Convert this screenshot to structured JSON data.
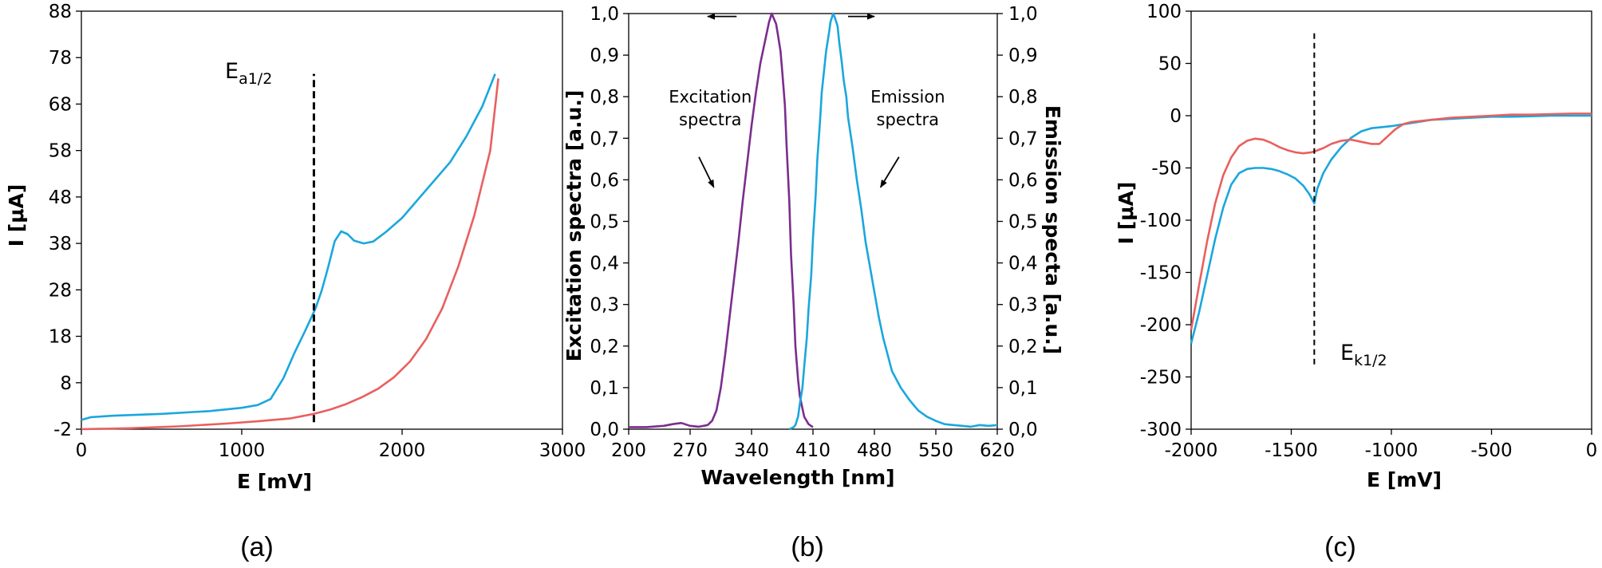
{
  "colors": {
    "blue": "#1aa7dd",
    "red": "#e8605f",
    "purple": "#7b2d8e"
  },
  "chart_data": [
    {
      "type": "line",
      "panel_label": "(a)",
      "xlabel": "E [mV]",
      "ylabel": "I [μA]",
      "xlim": [
        0,
        3000
      ],
      "ylim": [
        -2,
        88
      ],
      "xticks": [
        "0",
        "1000",
        "2000",
        "3000"
      ],
      "yticks": [
        "-2",
        "8",
        "18",
        "28",
        "38",
        "48",
        "58",
        "68",
        "78",
        "88"
      ],
      "grid": false,
      "annotation": {
        "base": "E",
        "sub": "a1/2",
        "x": 1450,
        "y_range": [
          -0.5,
          74.5
        ]
      },
      "series": [
        {
          "color": "blue",
          "x": [
            0,
            60,
            200,
            500,
            800,
            1000,
            1100,
            1180,
            1260,
            1330,
            1400,
            1460,
            1500,
            1540,
            1580,
            1620,
            1660,
            1700,
            1760,
            1820,
            1900,
            2000,
            2100,
            2200,
            2300,
            2400,
            2500,
            2580
          ],
          "y": [
            0,
            0.6,
            0.9,
            1.3,
            1.9,
            2.6,
            3.2,
            4.5,
            9.0,
            14.5,
            19.5,
            24.0,
            28.0,
            33.0,
            38.5,
            40.6,
            40.0,
            38.6,
            38.0,
            38.4,
            40.5,
            43.5,
            47.5,
            51.5,
            55.5,
            61.0,
            67.5,
            74.5
          ]
        },
        {
          "color": "red",
          "x": [
            0,
            300,
            600,
            900,
            1100,
            1300,
            1450,
            1550,
            1650,
            1750,
            1850,
            1950,
            2050,
            2150,
            2250,
            2350,
            2450,
            2550,
            2600
          ],
          "y": [
            -2,
            -1.8,
            -1.4,
            -0.8,
            -0.3,
            0.3,
            1.3,
            2.2,
            3.4,
            4.9,
            6.7,
            9.2,
            12.6,
            17.4,
            24.0,
            33.0,
            44.0,
            58.0,
            73.5
          ]
        }
      ]
    },
    {
      "type": "line",
      "panel_label": "(b)",
      "xlabel": "Wavelength [nm]",
      "ylabel_left": "Excitation spectra [a.u.]",
      "ylabel_right": "Emission specta [a.u.]",
      "xlim": [
        200,
        620
      ],
      "ylim": [
        0,
        1
      ],
      "xticks": [
        "200",
        "270",
        "340",
        "410",
        "480",
        "550",
        "620"
      ],
      "yticks": [
        "0,0",
        "0,1",
        "0,2",
        "0,3",
        "0,4",
        "0,5",
        "0,6",
        "0,7",
        "0,8",
        "0,9",
        "1,0"
      ],
      "grid": false,
      "annotations": [
        {
          "text": [
            "Excitation",
            "spectra"
          ],
          "x": 293,
          "y": [
            0.786,
            0.731
          ]
        },
        {
          "text": [
            "Emission",
            "spectra"
          ],
          "x": 518,
          "y": [
            0.786,
            0.731
          ]
        }
      ],
      "arrows": [
        {
          "from": [
            323,
            0.993
          ],
          "to": [
            290,
            0.993
          ]
        },
        {
          "from": [
            450,
            0.993
          ],
          "to": [
            480,
            0.993
          ]
        },
        {
          "from": [
            280,
            0.655
          ],
          "to": [
            297,
            0.582
          ]
        },
        {
          "from": [
            508,
            0.655
          ],
          "to": [
            487,
            0.582
          ]
        }
      ],
      "series": [
        {
          "name": "Excitation spectra",
          "color": "purple",
          "x": [
            200,
            220,
            240,
            250,
            260,
            270,
            280,
            290,
            295,
            300,
            305,
            310,
            315,
            320,
            325,
            330,
            335,
            340,
            345,
            350,
            355,
            358,
            360,
            363,
            365,
            368,
            370,
            373,
            375,
            378,
            380,
            383,
            385,
            388,
            390,
            393,
            395,
            400,
            405,
            410
          ],
          "y": [
            0.005,
            0.005,
            0.008,
            0.012,
            0.015,
            0.008,
            0.006,
            0.01,
            0.02,
            0.045,
            0.1,
            0.18,
            0.27,
            0.36,
            0.45,
            0.55,
            0.64,
            0.73,
            0.81,
            0.88,
            0.93,
            0.96,
            0.98,
            1.0,
            0.99,
            0.975,
            0.95,
            0.91,
            0.86,
            0.78,
            0.68,
            0.55,
            0.42,
            0.3,
            0.2,
            0.12,
            0.08,
            0.03,
            0.012,
            0.005
          ]
        },
        {
          "name": "Emission spectra",
          "color": "blue",
          "x": [
            383,
            388,
            390,
            393,
            395,
            398,
            400,
            403,
            405,
            408,
            410,
            413,
            415,
            418,
            420,
            423,
            425,
            428,
            430,
            433,
            435,
            438,
            440,
            443,
            445,
            448,
            450,
            455,
            460,
            465,
            470,
            475,
            480,
            485,
            490,
            495,
            500,
            505,
            510,
            520,
            530,
            540,
            550,
            560,
            570,
            580,
            590,
            600,
            610,
            620
          ],
          "y": [
            0.0,
            0.005,
            0.01,
            0.03,
            0.06,
            0.1,
            0.15,
            0.22,
            0.29,
            0.37,
            0.46,
            0.56,
            0.65,
            0.74,
            0.81,
            0.87,
            0.91,
            0.95,
            0.98,
            1.0,
            0.99,
            0.97,
            0.93,
            0.88,
            0.84,
            0.8,
            0.75,
            0.68,
            0.6,
            0.53,
            0.45,
            0.39,
            0.33,
            0.27,
            0.22,
            0.18,
            0.14,
            0.12,
            0.1,
            0.07,
            0.045,
            0.03,
            0.02,
            0.012,
            0.01,
            0.008,
            0.006,
            0.01,
            0.008,
            0.01
          ]
        }
      ]
    },
    {
      "type": "line",
      "panel_label": "(c)",
      "xlabel": "E [mV]",
      "ylabel": "I [μA]",
      "xlim": [
        -2000,
        0
      ],
      "ylim": [
        -300,
        100
      ],
      "xticks": [
        "-2000",
        "-1500",
        "-1000",
        "-500",
        "0"
      ],
      "yticks": [
        "-300",
        "-250",
        "-200",
        "-150",
        "-100",
        "-50",
        "0",
        "50",
        "100"
      ],
      "grid": false,
      "annotation": {
        "base": "E",
        "sub": "k1/2",
        "x": -1385,
        "y_range": [
          -238,
          80
        ]
      },
      "series": [
        {
          "color": "blue",
          "x": [
            -2000,
            -1960,
            -1920,
            -1880,
            -1840,
            -1800,
            -1760,
            -1720,
            -1680,
            -1640,
            -1600,
            -1560,
            -1520,
            -1480,
            -1440,
            -1410,
            -1385,
            -1370,
            -1340,
            -1300,
            -1250,
            -1200,
            -1150,
            -1100,
            -1050,
            -1000,
            -900,
            -800,
            -700,
            -600,
            -500,
            -400,
            -300,
            -200,
            -100,
            0
          ],
          "y": [
            -218,
            -188,
            -153,
            -118,
            -88,
            -66,
            -55,
            -51,
            -50,
            -50,
            -51,
            -53,
            -56,
            -60,
            -67,
            -75,
            -84,
            -70,
            -55,
            -42,
            -30,
            -21,
            -15,
            -12,
            -11,
            -10,
            -7,
            -4,
            -3,
            -2,
            -1,
            -1,
            -0.5,
            0,
            0,
            0
          ]
        },
        {
          "color": "red",
          "x": [
            -2000,
            -1960,
            -1920,
            -1880,
            -1840,
            -1800,
            -1760,
            -1720,
            -1680,
            -1640,
            -1600,
            -1560,
            -1520,
            -1480,
            -1440,
            -1400,
            -1380,
            -1340,
            -1300,
            -1250,
            -1200,
            -1150,
            -1100,
            -1060,
            -1020,
            -980,
            -940,
            -900,
            -800,
            -700,
            -600,
            -500,
            -400,
            -300,
            -200,
            -100,
            0
          ],
          "y": [
            -205,
            -162,
            -120,
            -84,
            -57,
            -40,
            -29,
            -24,
            -22,
            -23,
            -26,
            -30,
            -33,
            -35,
            -36,
            -35,
            -34,
            -31,
            -27,
            -24,
            -23,
            -25,
            -27,
            -27,
            -20,
            -13,
            -8,
            -6,
            -4,
            -2,
            -1,
            0,
            1,
            1,
            1.5,
            2,
            2
          ]
        }
      ]
    }
  ]
}
